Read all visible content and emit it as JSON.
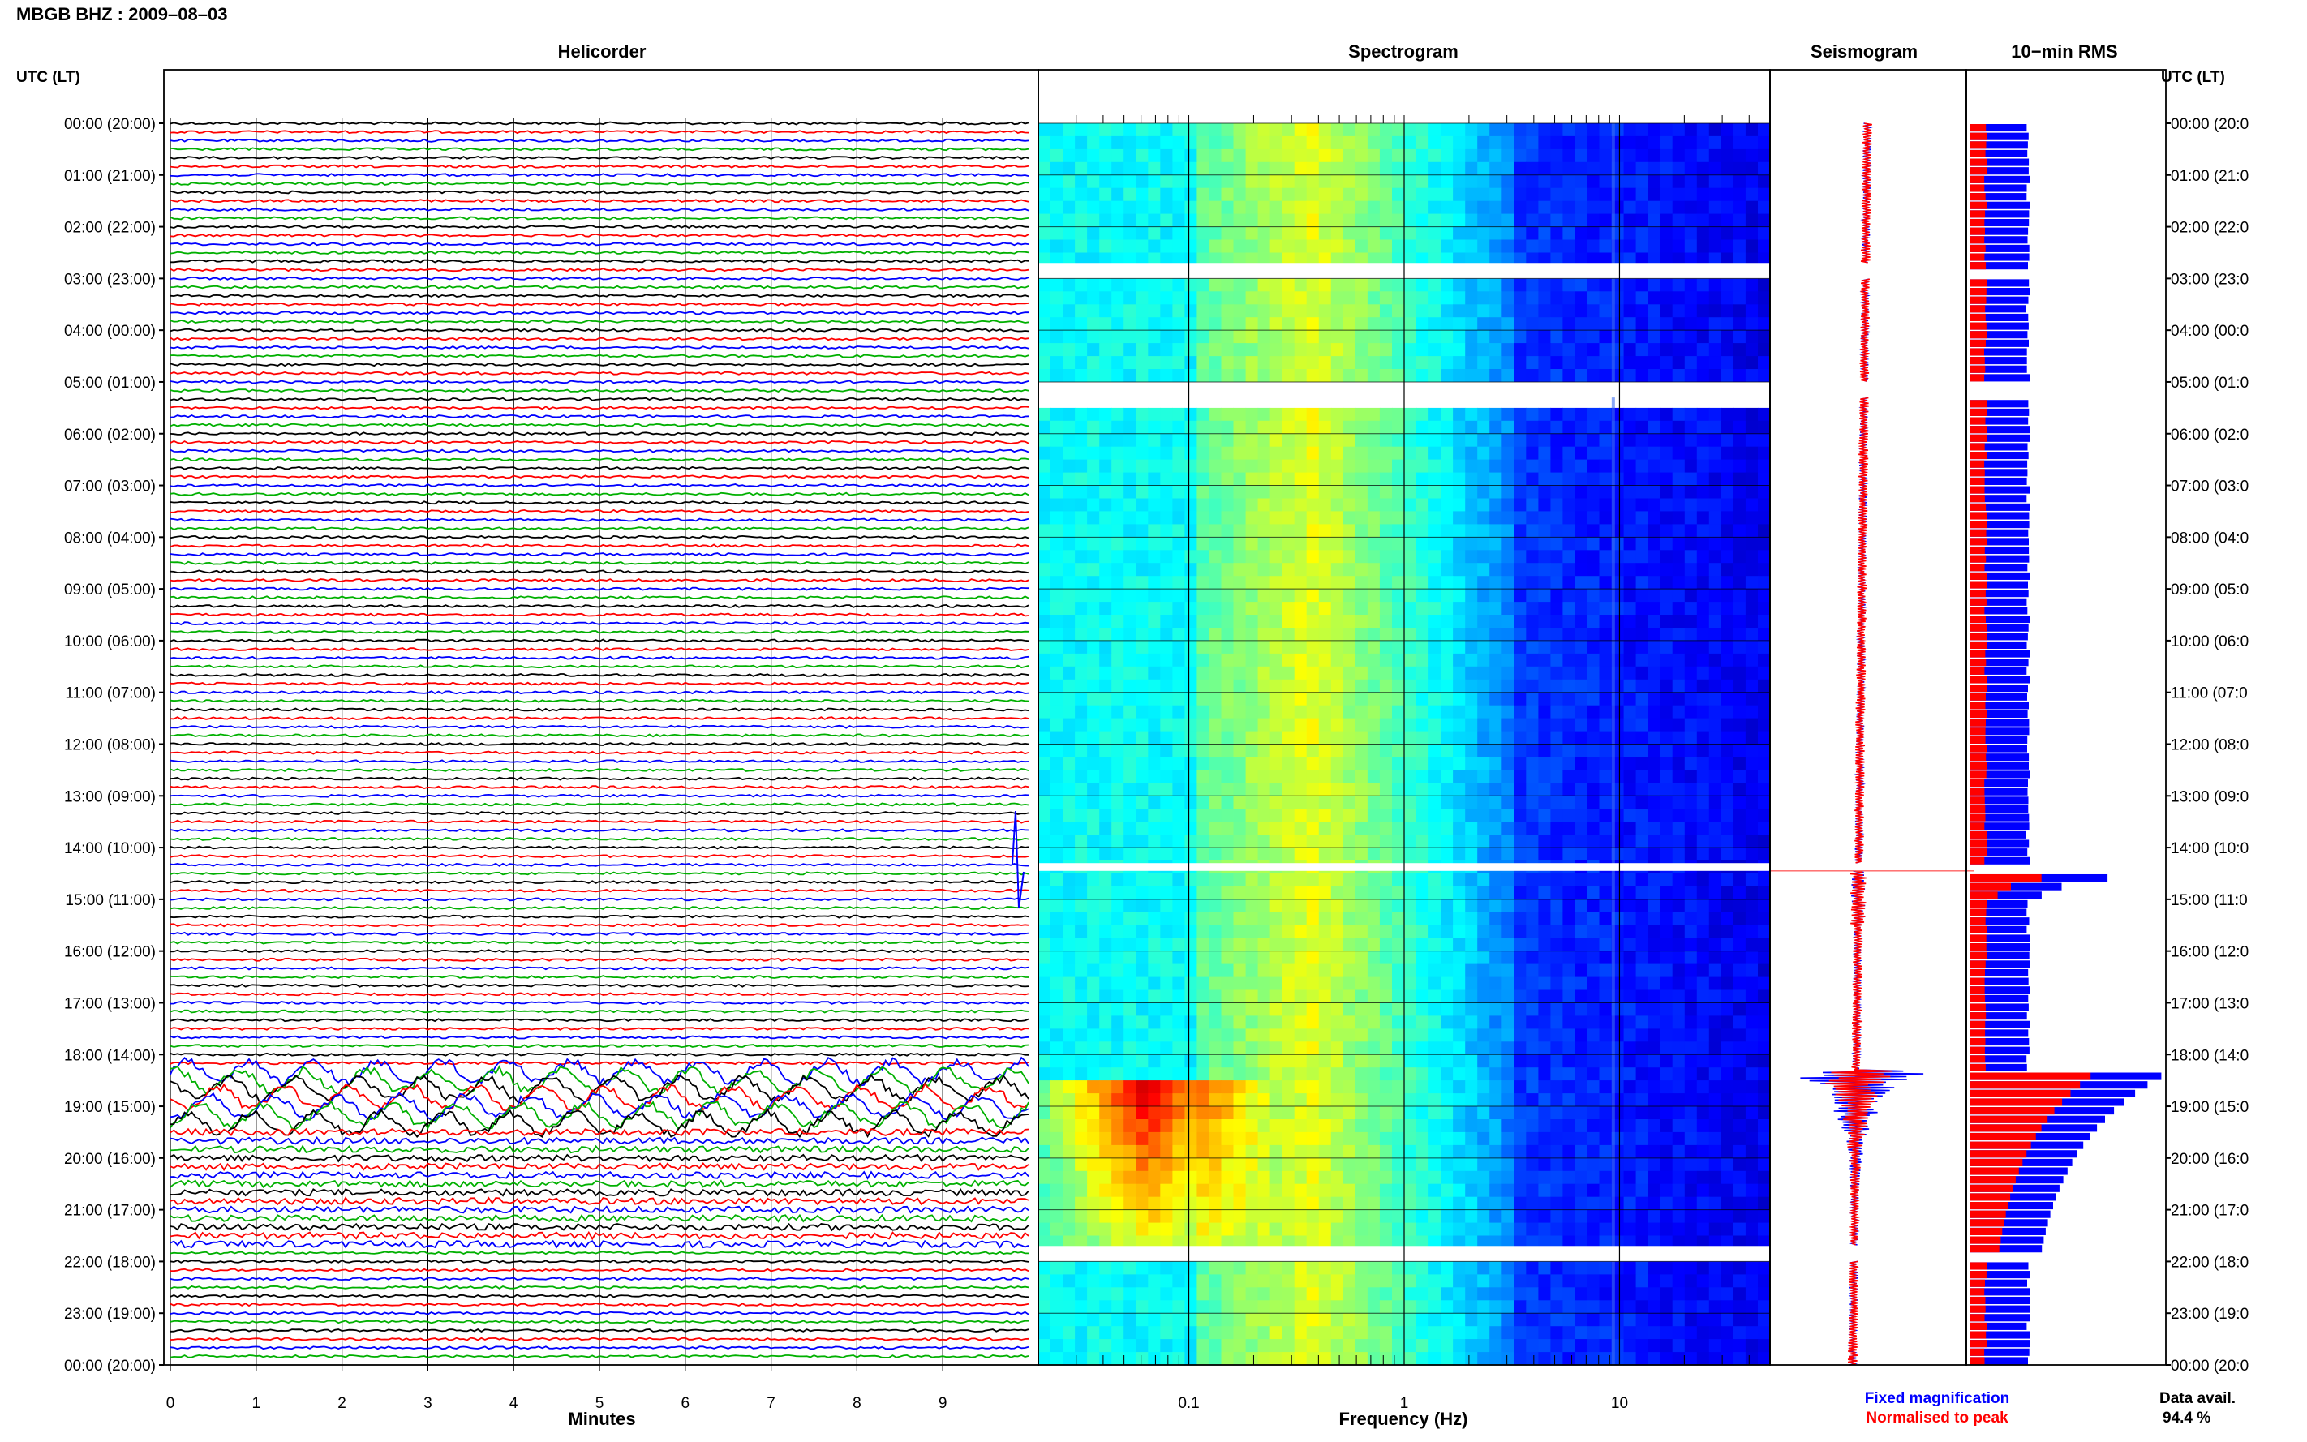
{
  "figure": {
    "title": "MBGB BHZ : 2009–08–03",
    "utc_header": "UTC (LT)",
    "panel_titles": {
      "helicorder": "Helicorder",
      "spectrogram": "Spectrogram",
      "seismogram": "Seismogram",
      "rms": "10−min RMS"
    },
    "xlabels": {
      "helicorder": "Minutes",
      "spectrogram": "Frequency (Hz)"
    },
    "legend": {
      "fixed": "Fixed magnification",
      "normalised": "Normalised to peak",
      "fixed_color": "#0000ff",
      "normalised_color": "#ff0000"
    },
    "data_avail_label": "Data avail.",
    "data_avail_value": "94.4 %"
  },
  "chart_data": [
    {
      "type": "line",
      "panel": "helicorder",
      "title": "Helicorder",
      "xlabel": "Minutes",
      "x_ticks": [
        "0",
        "1",
        "2",
        "3",
        "4",
        "5",
        "6",
        "7",
        "8",
        "9"
      ],
      "xlim": [
        0,
        10
      ],
      "trace_colors": [
        "#000000",
        "#ff0000",
        "#0000ff",
        "#00b000"
      ],
      "time_labels": [
        "00:00 (20:00)",
        "01:00 (21:00)",
        "02:00 (22:00)",
        "03:00 (23:00)",
        "04:00 (00:00)",
        "05:00 (01:00)",
        "06:00 (02:00)",
        "07:00 (03:00)",
        "08:00 (04:00)",
        "09:00 (05:00)",
        "10:00 (06:00)",
        "11:00 (07:00)",
        "12:00 (08:00)",
        "13:00 (09:00)",
        "14:00 (10:00)",
        "15:00 (11:00)",
        "16:00 (12:00)",
        "17:00 (13:00)",
        "18:00 (14:00)",
        "19:00 (15:00)",
        "20:00 (16:00)",
        "21:00 (17:00)",
        "22:00 (18:00)",
        "23:00 (19:00)",
        "00:00 (20:00)"
      ],
      "right_time_labels": [
        "00:00 (20:0",
        "01:00 (21:0",
        "02:00 (22:0",
        "03:00 (23:0",
        "04:00 (00:0",
        "05:00 (01:0",
        "06:00 (02:0",
        "07:00 (03:0",
        "08:00 (04:0",
        "09:00 (05:0",
        "10:00 (06:0",
        "11:00 (07:0",
        "12:00 (08:0",
        "13:00 (09:0",
        "14:00 (10:0",
        "15:00 (11:0",
        "16:00 (12:0",
        "17:00 (13:0",
        "18:00 (14:0",
        "19:00 (15:0",
        "20:00 (16:0",
        "21:00 (17:0",
        "22:00 (18:0",
        "23:00 (19:0",
        "00:00 (20:0"
      ]
    },
    {
      "type": "heatmap",
      "panel": "spectrogram",
      "title": "Spectrogram",
      "xlabel": "Frequency (Hz)",
      "x_scale": "log",
      "xlim": [
        0.02,
        50
      ],
      "x_ticks": [
        "0.1",
        "1",
        "10"
      ],
      "data_gaps_hours": [
        [
          2.7,
          3.0
        ],
        [
          5.0,
          5.3
        ],
        [
          14.3,
          14.45
        ],
        [
          21.7,
          22.0
        ]
      ],
      "event_hours": [
        18.3,
        21.7
      ],
      "event_peak_frequency_hz": 0.06
    },
    {
      "type": "line",
      "panel": "seismogram",
      "title": "Seismogram",
      "series": [
        {
          "name": "Fixed magnification",
          "color": "#0000ff"
        },
        {
          "name": "Normalised to peak",
          "color": "#ff0000"
        }
      ],
      "event_hours": [
        18.3,
        21.7
      ]
    },
    {
      "type": "bar",
      "panel": "rms",
      "title": "10−min RMS",
      "orientation": "horizontal",
      "series": [
        {
          "name": "Fixed magnification",
          "color": "#0000ff"
        },
        {
          "name": "Normalised to peak",
          "color": "#ff0000"
        }
      ],
      "peak_hours": [
        14.4,
        18.3
      ]
    }
  ]
}
